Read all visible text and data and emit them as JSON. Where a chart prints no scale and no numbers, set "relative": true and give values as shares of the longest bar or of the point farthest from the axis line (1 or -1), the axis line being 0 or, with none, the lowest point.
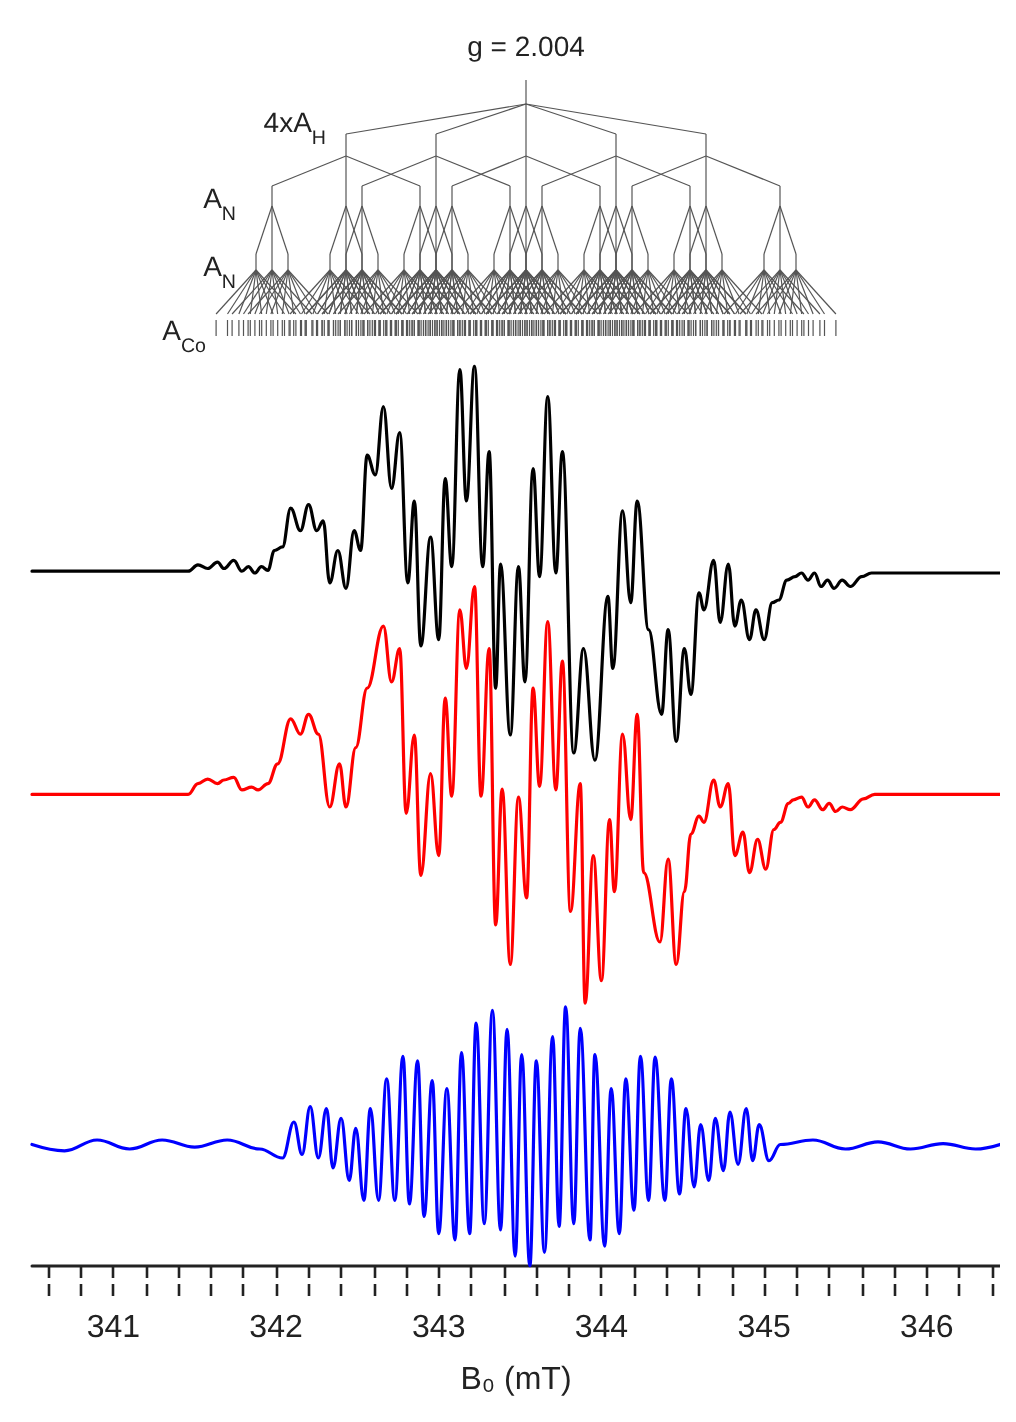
{
  "chart_data": {
    "type": "line",
    "relative": true,
    "xlabel": "B₀ (mT)",
    "xlim": [
      340.5,
      346.45
    ],
    "xticks": [
      {
        "value": 340.6,
        "label": null
      },
      {
        "value": 340.8,
        "label": null
      },
      341,
      {
        "value": 341.2,
        "label": null
      },
      {
        "value": 341.4,
        "label": null
      },
      {
        "value": 341.6,
        "label": null
      },
      {
        "value": 341.8,
        "label": null
      },
      342,
      {
        "value": 342.2,
        "label": null
      },
      {
        "value": 342.4,
        "label": null
      },
      {
        "value": 342.6,
        "label": null
      },
      {
        "value": 342.8,
        "label": null
      },
      343,
      {
        "value": 343.2,
        "label": null
      },
      {
        "value": 343.4,
        "label": null
      },
      {
        "value": 343.6,
        "label": null
      },
      {
        "value": 343.8,
        "label": null
      },
      344,
      {
        "value": 344.2,
        "label": null
      },
      {
        "value": 344.4,
        "label": null
      },
      {
        "value": 344.6,
        "label": null
      },
      {
        "value": 344.8,
        "label": null
      },
      345,
      {
        "value": 345.2,
        "label": null
      },
      {
        "value": 345.4,
        "label": null
      },
      {
        "value": 345.6,
        "label": null
      },
      {
        "value": 345.8,
        "label": null
      },
      346,
      {
        "value": 346.2,
        "label": null
      },
      {
        "value": 346.4,
        "label": null
      }
    ],
    "grid": false,
    "marker": "none",
    "line_style": "solid",
    "annotations": [
      "g = 2.004",
      "4xA$_{H}$",
      "A$_{N}$",
      "A$_{N}$",
      "A$_{Co}$"
    ],
    "series": [
      {
        "color": "#000000",
        "x": [
          340.5,
          341.46,
          341.52,
          341.58,
          341.64,
          341.68,
          341.74,
          341.79,
          341.83,
          341.87,
          341.91,
          341.95,
          341.99,
          342.04,
          342.09,
          342.15,
          342.2,
          342.25,
          342.29,
          342.33,
          342.38,
          342.43,
          342.48,
          342.52,
          342.56,
          342.61,
          342.66,
          342.71,
          342.76,
          342.81,
          342.85,
          342.89,
          342.95,
          343.0,
          343.04,
          343.08,
          343.13,
          343.17,
          343.22,
          343.27,
          343.31,
          343.35,
          343.38,
          343.44,
          343.49,
          343.53,
          343.58,
          343.62,
          343.67,
          343.72,
          343.76,
          343.83,
          343.89,
          343.96,
          344.04,
          344.07,
          344.13,
          344.18,
          344.22,
          344.29,
          344.37,
          344.41,
          344.46,
          344.51,
          344.55,
          344.6,
          344.63,
          344.69,
          344.73,
          344.78,
          344.82,
          344.86,
          344.91,
          344.95,
          345.0,
          345.05,
          345.09,
          345.14,
          345.19,
          345.23,
          345.27,
          345.31,
          345.35,
          345.39,
          345.43,
          345.48,
          345.53,
          345.6,
          345.66,
          346.45
        ],
        "values": [
          0.772,
          0.772,
          0.779,
          0.775,
          0.782,
          0.775,
          0.784,
          0.772,
          0.777,
          0.77,
          0.777,
          0.773,
          0.795,
          0.799,
          0.842,
          0.817,
          0.846,
          0.817,
          0.828,
          0.759,
          0.795,
          0.753,
          0.817,
          0.795,
          0.901,
          0.879,
          0.955,
          0.864,
          0.926,
          0.759,
          0.85,
          0.689,
          0.81,
          0.696,
          0.875,
          0.777,
          0.996,
          0.85,
          1.0,
          0.777,
          0.905,
          0.642,
          0.78,
          0.59,
          0.777,
          0.649,
          0.886,
          0.766,
          0.966,
          0.77,
          0.905,
          0.57,
          0.686,
          0.562,
          0.744,
          0.664,
          0.839,
          0.737,
          0.85,
          0.707,
          0.613,
          0.707,
          0.583,
          0.686,
          0.635,
          0.748,
          0.729,
          0.784,
          0.715,
          0.78,
          0.711,
          0.74,
          0.696,
          0.729,
          0.696,
          0.737,
          0.74,
          0.762,
          0.766,
          0.77,
          0.762,
          0.77,
          0.755,
          0.762,
          0.753,
          0.762,
          0.755,
          0.766,
          0.77,
          0.77
        ]
      },
      {
        "color": "#ff0000",
        "x": [
          340.5,
          341.46,
          341.52,
          341.58,
          341.64,
          341.68,
          341.74,
          341.79,
          341.85,
          341.89,
          341.95,
          342.01,
          342.09,
          342.15,
          342.2,
          342.26,
          342.33,
          342.39,
          342.43,
          342.49,
          342.56,
          342.66,
          342.71,
          342.76,
          342.8,
          342.85,
          342.89,
          342.95,
          343.0,
          343.04,
          343.08,
          343.13,
          343.17,
          343.22,
          343.26,
          343.31,
          343.35,
          343.39,
          343.44,
          343.49,
          343.54,
          343.58,
          343.62,
          343.67,
          343.72,
          343.76,
          343.81,
          343.87,
          343.9,
          343.95,
          344.0,
          344.05,
          344.08,
          344.13,
          344.18,
          344.22,
          344.26,
          344.36,
          344.41,
          344.46,
          344.51,
          344.55,
          344.6,
          344.63,
          344.69,
          344.73,
          344.78,
          344.82,
          344.87,
          344.91,
          344.96,
          345.01,
          345.06,
          345.1,
          345.15,
          345.18,
          345.23,
          345.27,
          345.31,
          345.36,
          345.4,
          345.44,
          345.48,
          345.53,
          345.61,
          345.68,
          346.45
        ],
        "values": [
          0.524,
          0.524,
          0.536,
          0.541,
          0.536,
          0.54,
          0.543,
          0.529,
          0.532,
          0.529,
          0.536,
          0.558,
          0.608,
          0.591,
          0.613,
          0.591,
          0.51,
          0.558,
          0.51,
          0.576,
          0.642,
          0.711,
          0.649,
          0.686,
          0.503,
          0.59,
          0.434,
          0.547,
          0.456,
          0.631,
          0.522,
          0.729,
          0.664,
          0.755,
          0.522,
          0.686,
          0.379,
          0.53,
          0.335,
          0.521,
          0.409,
          0.642,
          0.533,
          0.716,
          0.529,
          0.672,
          0.394,
          0.536,
          0.292,
          0.456,
          0.317,
          0.496,
          0.416,
          0.591,
          0.496,
          0.613,
          0.437,
          0.36,
          0.452,
          0.335,
          0.416,
          0.48,
          0.5,
          0.493,
          0.54,
          0.51,
          0.536,
          0.456,
          0.482,
          0.437,
          0.474,
          0.441,
          0.485,
          0.493,
          0.514,
          0.518,
          0.521,
          0.51,
          0.518,
          0.507,
          0.514,
          0.505,
          0.51,
          0.507,
          0.519,
          0.524,
          0.524
        ]
      },
      {
        "color": "#0000ff",
        "x": [
          340.5,
          340.7,
          340.9,
          341.1,
          341.3,
          341.5,
          341.7,
          341.9,
          342.04,
          342.11,
          342.16,
          342.21,
          342.26,
          342.31,
          342.35,
          342.4,
          342.45,
          342.49,
          342.54,
          342.58,
          342.63,
          342.68,
          342.73,
          342.78,
          342.82,
          342.87,
          342.91,
          342.96,
          343.0,
          343.05,
          343.1,
          343.14,
          343.19,
          343.23,
          343.28,
          343.33,
          343.38,
          343.42,
          343.47,
          343.51,
          343.56,
          343.6,
          343.65,
          343.7,
          343.74,
          343.78,
          343.83,
          343.87,
          343.93,
          343.96,
          344.02,
          344.06,
          344.11,
          344.15,
          344.2,
          344.24,
          344.29,
          344.33,
          344.39,
          344.43,
          344.48,
          344.52,
          344.57,
          344.61,
          344.66,
          344.7,
          344.75,
          344.79,
          344.84,
          344.89,
          344.93,
          344.97,
          345.03,
          345.1,
          345.3,
          345.5,
          345.7,
          345.9,
          346.1,
          346.3,
          346.45
        ],
        "values": [
          0.135,
          0.128,
          0.14,
          0.13,
          0.14,
          0.132,
          0.14,
          0.13,
          0.12,
          0.16,
          0.124,
          0.177,
          0.12,
          0.175,
          0.109,
          0.164,
          0.095,
          0.153,
          0.073,
          0.175,
          0.073,
          0.208,
          0.073,
          0.233,
          0.069,
          0.228,
          0.055,
          0.206,
          0.036,
          0.197,
          0.029,
          0.237,
          0.036,
          0.27,
          0.047,
          0.284,
          0.04,
          0.263,
          0.011,
          0.235,
          0.0,
          0.228,
          0.015,
          0.255,
          0.044,
          0.288,
          0.047,
          0.264,
          0.029,
          0.235,
          0.022,
          0.197,
          0.036,
          0.208,
          0.062,
          0.233,
          0.073,
          0.232,
          0.073,
          0.208,
          0.08,
          0.175,
          0.088,
          0.157,
          0.095,
          0.164,
          0.106,
          0.171,
          0.113,
          0.175,
          0.117,
          0.157,
          0.117,
          0.135,
          0.14,
          0.13,
          0.138,
          0.13,
          0.136,
          0.13,
          0.135
        ]
      }
    ]
  }
}
